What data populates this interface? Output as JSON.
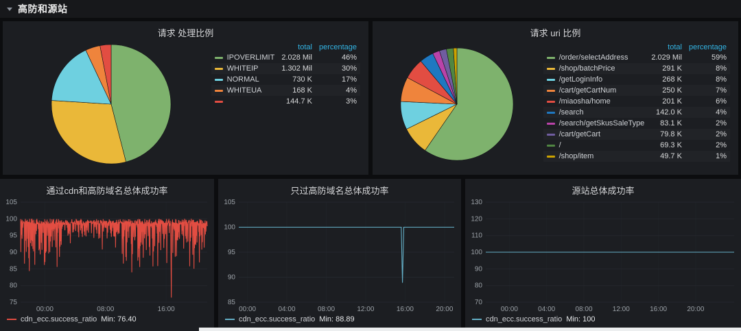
{
  "row_header": {
    "title": "高防和源站"
  },
  "pie_panels": [
    {
      "title": "请求 处理比例",
      "col_total": "total",
      "col_percentage": "percentage",
      "chart_data": {
        "type": "pie",
        "start_angle": "top",
        "direction": "clockwise",
        "slices": [
          {
            "label": "IPOVERLIMIT",
            "total": "2.028 Mil",
            "percentage": "46%",
            "value": 46,
            "color": "#7eb26d"
          },
          {
            "label": "WHITEIP",
            "total": "1.302 Mil",
            "percentage": "30%",
            "value": 30,
            "color": "#eab839"
          },
          {
            "label": "NORMAL",
            "total": "730 K",
            "percentage": "17%",
            "value": 17,
            "color": "#6ed0e0"
          },
          {
            "label": "WHITEUA",
            "total": "168 K",
            "percentage": "4%",
            "value": 4,
            "color": "#ef843c"
          },
          {
            "label": "",
            "total": "144.7 K",
            "percentage": "3%",
            "value": 3,
            "color": "#e24d42"
          }
        ]
      }
    },
    {
      "title": "请求 uri 比例",
      "col_total": "total",
      "col_percentage": "percentage",
      "chart_data": {
        "type": "pie",
        "start_angle": "top",
        "direction": "clockwise",
        "slices": [
          {
            "label": "/order/selectAddress",
            "total": "2.029 Mil",
            "percentage": "59%",
            "value": 59,
            "color": "#7eb26d"
          },
          {
            "label": "/shop/batchPrice",
            "total": "291 K",
            "percentage": "8%",
            "value": 8,
            "color": "#eab839"
          },
          {
            "label": "/getLoginInfo",
            "total": "268 K",
            "percentage": "8%",
            "value": 8,
            "color": "#6ed0e0"
          },
          {
            "label": "/cart/getCartNum",
            "total": "250 K",
            "percentage": "7%",
            "value": 7,
            "color": "#ef843c"
          },
          {
            "label": "/miaosha/home",
            "total": "201 K",
            "percentage": "6%",
            "value": 6,
            "color": "#e24d42"
          },
          {
            "label": "/search",
            "total": "142.0 K",
            "percentage": "4%",
            "value": 4,
            "color": "#1f78c1"
          },
          {
            "label": "/search/getSkusSaleType",
            "total": "83.1 K",
            "percentage": "2%",
            "value": 2,
            "color": "#ba43a9"
          },
          {
            "label": "/cart/getCart",
            "total": "79.8 K",
            "percentage": "2%",
            "value": 2,
            "color": "#705da0"
          },
          {
            "label": "/",
            "total": "69.3 K",
            "percentage": "2%",
            "value": 2,
            "color": "#508642"
          },
          {
            "label": "/shop/item",
            "total": "49.7 K",
            "percentage": "1%",
            "value": 1,
            "color": "#cca300"
          }
        ]
      }
    }
  ],
  "graph_panels": [
    {
      "title": "通过cdn和高防域名总体成功率",
      "series_name": "cdn_ecc.success_ratio",
      "legend_min": "Min: 76.40",
      "chart_data": {
        "type": "line",
        "ylim": [
          75,
          105
        ],
        "y_ticks": [
          75,
          80,
          85,
          90,
          95,
          100,
          105
        ],
        "x_ticks": [
          {
            "label": "00:00",
            "pos": 0.13
          },
          {
            "label": "08:00",
            "pos": 0.455
          },
          {
            "label": "16:00",
            "pos": 0.78
          }
        ],
        "series": [
          {
            "name": "cdn_ecc.success_ratio",
            "color": "#e24d42",
            "pattern": "dense-noise",
            "baseline": 100,
            "min": 76.4,
            "max": 100,
            "description": "success ratio fluctuating heavily between ~78% and 100%; deepest dips near start and after 12:00"
          }
        ]
      }
    },
    {
      "title": "只过高防域名总体成功率",
      "series_name": "cdn_ecc.success_ratio",
      "legend_min": "Min: 88.89",
      "chart_data": {
        "type": "line",
        "ylim": [
          85,
          105
        ],
        "y_ticks": [
          85,
          90,
          95,
          100,
          105
        ],
        "x_ticks": [
          {
            "label": "00:00",
            "pos": 0.04
          },
          {
            "label": "04:00",
            "pos": 0.223
          },
          {
            "label": "08:00",
            "pos": 0.406
          },
          {
            "label": "12:00",
            "pos": 0.589
          },
          {
            "label": "16:00",
            "pos": 0.772
          },
          {
            "label": "20:00",
            "pos": 0.955
          }
        ],
        "series": [
          {
            "name": "cdn_ecc.success_ratio",
            "color": "#64b0c8",
            "pattern": "flat-with-dip",
            "baseline": 100,
            "min": 88.89,
            "dip_pos": 0.76,
            "description": "flat at 100% with one sharp dip to 88.89% around 15:00"
          }
        ]
      }
    },
    {
      "title": "源站总体成功率",
      "series_name": "cdn_ecc.success_ratio",
      "legend_min": "Min: 100",
      "chart_data": {
        "type": "line",
        "ylim": [
          70,
          130
        ],
        "y_ticks": [
          70,
          80,
          90,
          100,
          110,
          120,
          130
        ],
        "x_ticks": [
          {
            "label": "00:00",
            "pos": 0.095
          },
          {
            "label": "04:00",
            "pos": 0.245
          },
          {
            "label": "08:00",
            "pos": 0.395
          },
          {
            "label": "12:00",
            "pos": 0.545
          },
          {
            "label": "16:00",
            "pos": 0.695
          },
          {
            "label": "20:00",
            "pos": 0.845
          }
        ],
        "series": [
          {
            "name": "cdn_ecc.success_ratio",
            "color": "#64b0c8",
            "pattern": "flat",
            "baseline": 100,
            "min": 100,
            "description": "completely flat at 100%"
          }
        ]
      }
    }
  ]
}
